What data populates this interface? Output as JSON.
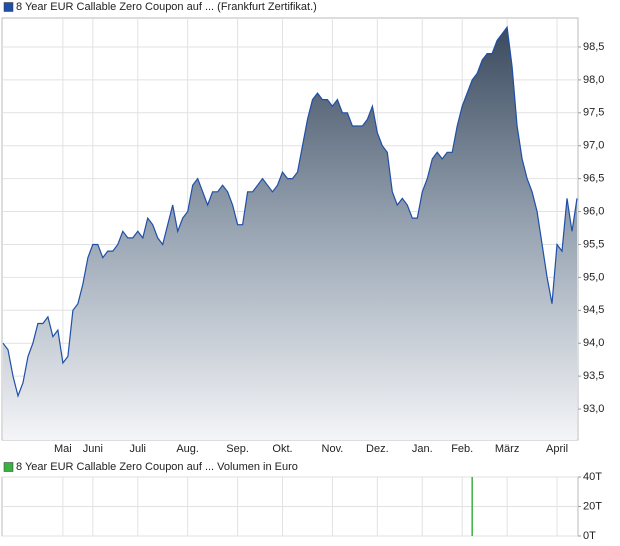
{
  "chart_data": [
    {
      "type": "area",
      "categories": [
        null,
        null,
        null,
        null,
        null,
        null,
        null,
        null,
        null,
        null,
        null,
        null,
        "Mai",
        null,
        null,
        null,
        null,
        null,
        "Juni",
        null,
        null,
        null,
        null,
        null,
        null,
        null,
        null,
        "Juli",
        null,
        null,
        null,
        null,
        null,
        null,
        null,
        null,
        null,
        "Aug.",
        null,
        null,
        null,
        null,
        null,
        null,
        null,
        null,
        null,
        "Sep.",
        null,
        null,
        null,
        null,
        null,
        null,
        null,
        null,
        "Okt.",
        null,
        null,
        null,
        null,
        null,
        null,
        null,
        null,
        null,
        "Nov.",
        null,
        null,
        null,
        null,
        null,
        null,
        null,
        null,
        "Dez.",
        null,
        null,
        null,
        null,
        null,
        null,
        null,
        null,
        "Jan.",
        null,
        null,
        null,
        null,
        null,
        null,
        null,
        "Feb.",
        null,
        null,
        null,
        null,
        null,
        null,
        null,
        null,
        "März",
        null,
        null,
        null,
        null,
        null,
        null,
        null,
        null,
        null,
        "April",
        null,
        null,
        null,
        null
      ],
      "series": [
        {
          "name": "8 Year EUR Callable Zero Coupon auf ... (Frankfurt Zertifikat.)",
          "color": "#1f4fa8",
          "values": [
            94.0,
            93.9,
            93.5,
            93.2,
            93.4,
            93.8,
            94.0,
            94.3,
            94.3,
            94.4,
            94.1,
            94.2,
            93.7,
            93.8,
            94.5,
            94.6,
            94.9,
            95.3,
            95.5,
            95.5,
            95.3,
            95.4,
            95.4,
            95.5,
            95.7,
            95.6,
            95.6,
            95.7,
            95.6,
            95.9,
            95.8,
            95.6,
            95.5,
            95.8,
            96.1,
            95.7,
            95.9,
            96.0,
            96.4,
            96.5,
            96.3,
            96.1,
            96.3,
            96.3,
            96.4,
            96.3,
            96.1,
            95.8,
            95.8,
            96.3,
            96.3,
            96.4,
            96.5,
            96.4,
            96.3,
            96.4,
            96.6,
            96.5,
            96.5,
            96.6,
            97.0,
            97.4,
            97.7,
            97.8,
            97.7,
            97.7,
            97.6,
            97.7,
            97.5,
            97.5,
            97.3,
            97.3,
            97.3,
            97.4,
            97.6,
            97.2,
            97.0,
            96.9,
            96.3,
            96.1,
            96.2,
            96.1,
            95.9,
            95.9,
            96.3,
            96.5,
            96.8,
            96.9,
            96.8,
            96.9,
            96.9,
            97.3,
            97.6,
            97.8,
            98.0,
            98.1,
            98.3,
            98.4,
            98.4,
            98.6,
            98.7,
            98.8,
            98.2,
            97.3,
            96.8,
            96.5,
            96.3,
            96.0,
            95.5,
            95.0,
            94.6,
            95.5,
            95.4,
            96.2,
            95.7,
            96.2
          ]
        }
      ],
      "ylim": [
        92.53,
        98.94
      ],
      "yticks": [
        {
          "value": 93.0,
          "label": "93,0"
        },
        {
          "value": 93.5,
          "label": "93,5"
        },
        {
          "value": 94.0,
          "label": "94,0"
        },
        {
          "value": 94.5,
          "label": "94,5"
        },
        {
          "value": 95.0,
          "label": "95,0"
        },
        {
          "value": 95.5,
          "label": "95,5"
        },
        {
          "value": 96.0,
          "label": "96,0"
        },
        {
          "value": 96.5,
          "label": "96,5"
        },
        {
          "value": 97.0,
          "label": "97,0"
        },
        {
          "value": 97.5,
          "label": "97,5"
        },
        {
          "value": 98.0,
          "label": "98,0"
        },
        {
          "value": 98.5,
          "label": "98,5"
        }
      ],
      "grid": true
    },
    {
      "type": "bar",
      "series": [
        {
          "name": "8 Year EUR Callable Zero Coupon auf ... Volumen in Euro",
          "color": "#3cb043",
          "values": [
            0,
            0,
            0,
            0,
            0,
            0,
            0,
            0,
            0,
            0,
            0,
            0,
            0,
            0,
            0,
            0,
            0,
            0,
            0,
            0,
            0,
            0,
            0,
            0,
            0,
            0,
            0,
            0,
            0,
            0,
            0,
            0,
            0,
            0,
            0,
            0,
            0,
            0,
            0,
            0,
            0,
            0,
            0,
            0,
            0,
            0,
            0,
            0,
            0,
            0,
            0,
            0,
            0,
            0,
            0,
            0,
            0,
            0,
            0,
            0,
            0,
            0,
            0,
            0,
            0,
            0,
            0,
            0,
            0,
            0,
            0,
            0,
            0,
            0,
            0,
            0,
            0,
            0,
            0,
            0,
            0,
            0,
            0,
            0,
            0,
            0,
            0,
            0,
            0,
            0,
            0,
            0,
            0,
            0,
            40000,
            0,
            0,
            0,
            0,
            0,
            0,
            0,
            0,
            0,
            0,
            0,
            0,
            0,
            0,
            0,
            0,
            0,
            0,
            0,
            0,
            0
          ]
        }
      ],
      "ylim": [
        0,
        40000
      ],
      "yticks": [
        {
          "value": 0,
          "label": "0T"
        },
        {
          "value": 20000,
          "label": "20T"
        },
        {
          "value": 40000,
          "label": "40T"
        }
      ],
      "grid": true
    }
  ]
}
